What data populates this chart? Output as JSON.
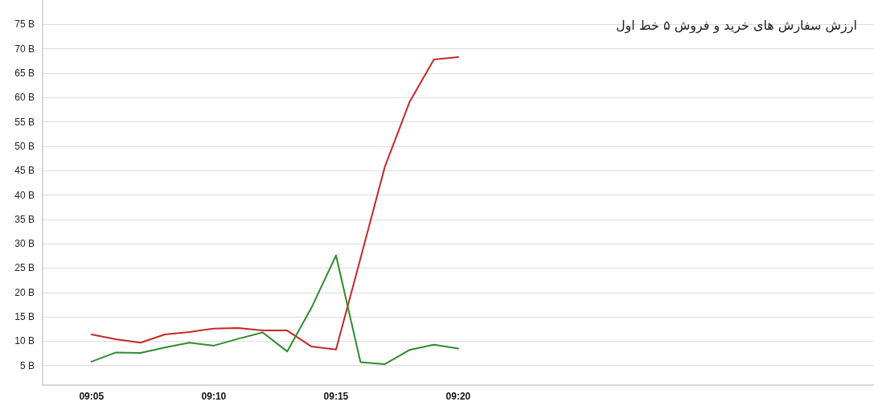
{
  "chart_data": {
    "type": "line",
    "title": "ارزش سفارش های خرید و فروش ۵ خط اول",
    "x": [
      9.0833,
      9.1,
      9.1167,
      9.1333,
      9.15,
      9.1667,
      9.1833,
      9.2,
      9.2167,
      9.2333,
      9.25,
      9.2667,
      9.2833,
      9.3,
      9.3167,
      9.3333
    ],
    "series": [
      {
        "color": "#c62828",
        "values": [
          11.4,
          10.4,
          9.7,
          11.4,
          11.9,
          12.6,
          12.7,
          12.2,
          12.2,
          8.9,
          8.3,
          27,
          45.8,
          59,
          67.8,
          68.3
        ]
      },
      {
        "color": "#2e8b2e",
        "values": [
          5.8,
          7.7,
          7.6,
          8.7,
          9.7,
          9.1,
          10.5,
          11.8,
          7.9,
          16.9,
          27.6,
          5.7,
          5.3,
          8.2,
          9.3,
          8.5
        ]
      }
    ],
    "xlim": [
      9.05,
      9.6167
    ],
    "xticks": [
      {
        "value": 9.0833,
        "label": "09:05"
      },
      {
        "value": 9.1667,
        "label": "09:10"
      },
      {
        "value": 9.25,
        "label": "09:15"
      },
      {
        "value": 9.3333,
        "label": "09:20"
      }
    ],
    "ylim": [
      1,
      80
    ],
    "yticks": [
      {
        "value": 5,
        "label": "5 B"
      },
      {
        "value": 10,
        "label": "10 B"
      },
      {
        "value": 15,
        "label": "15 B"
      },
      {
        "value": 20,
        "label": "20 B"
      },
      {
        "value": 25,
        "label": "25 B"
      },
      {
        "value": 30,
        "label": "30 B"
      },
      {
        "value": 35,
        "label": "35 B"
      },
      {
        "value": 40,
        "label": "40 B"
      },
      {
        "value": 45,
        "label": "45 B"
      },
      {
        "value": 50,
        "label": "50 B"
      },
      {
        "value": 55,
        "label": "55 B"
      },
      {
        "value": 60,
        "label": "60 B"
      },
      {
        "value": 65,
        "label": "65 B"
      },
      {
        "value": 70,
        "label": "70 B"
      },
      {
        "value": 75,
        "label": "75 B"
      }
    ],
    "grid": "y",
    "marker": "none",
    "line_style": "solid"
  }
}
